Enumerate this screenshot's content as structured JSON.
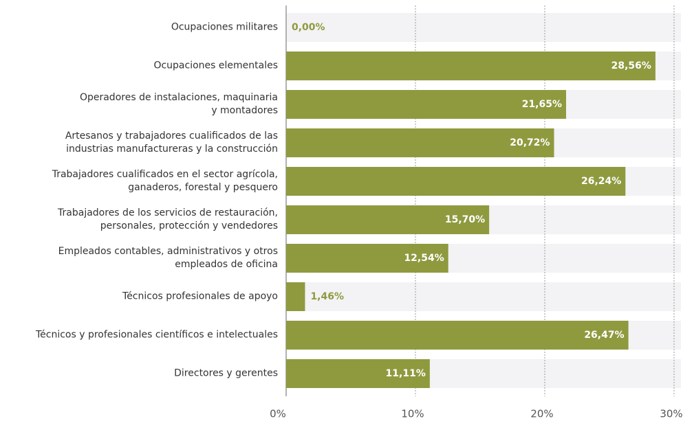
{
  "chart_data": {
    "type": "hbar",
    "categories": [
      "Ocupaciones militares",
      "Ocupaciones elementales",
      "Operadores de instalaciones, maquinaria\ny montadores",
      "Artesanos y trabajadores cualificados de las\nindustrias manufactureras y  la construcción",
      "Trabajadores cualificados en el sector agrícola,\nganaderos, forestal y pesquero",
      "Trabajadores de los servicios de restauración,\npersonales, protección y vendedores",
      "Empleados contables, administrativos y otros\nempleados de oficina",
      "Técnicos profesionales de apoyo",
      "Técnicos y profesionales científicos e intelectuales",
      "Directores y gerentes"
    ],
    "values": [
      0,
      28.56,
      21.65,
      20.72,
      26.24,
      15.7,
      12.54,
      1.46,
      26.47,
      11.11
    ],
    "value_labels": [
      "0,00%",
      "28,56%",
      "21,65%",
      "20,72%",
      "26,24%",
      "15,70%",
      "12,54%",
      "1,46%",
      "26,47%",
      "11,11%"
    ],
    "color": "#8f9a3f",
    "xlim": [
      0,
      30
    ],
    "xticks": [
      {
        "value": 0,
        "label": "0%"
      },
      {
        "value": 10,
        "label": "10%"
      },
      {
        "value": 20,
        "label": "20%"
      },
      {
        "value": 30,
        "label": "30%"
      }
    ],
    "grid": true
  }
}
